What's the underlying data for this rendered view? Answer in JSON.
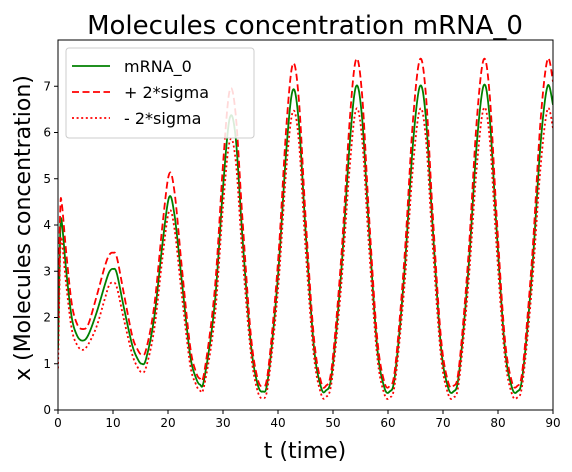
{
  "chart_data": {
    "type": "line",
    "title": "Molecules concentration mRNA_0",
    "xlabel": "t (time)",
    "ylabel": "x (Molecules concentration)",
    "xlim": [
      0,
      90
    ],
    "ylim": [
      0,
      8
    ],
    "xticks": [
      "0",
      "10",
      "20",
      "30",
      "40",
      "50",
      "60",
      "70",
      "80",
      "90"
    ],
    "yticks": [
      "0",
      "1",
      "2",
      "3",
      "4",
      "5",
      "6",
      "7"
    ],
    "grid": false,
    "legend_position": "top-left",
    "series": [
      {
        "name": "mRNA_0",
        "color": "#008000",
        "style": "solid",
        "points": [
          [
            0,
            1.3
          ],
          [
            0.4,
            3.8
          ],
          [
            0.7,
            4.05
          ],
          [
            1.5,
            3.0
          ],
          [
            2.5,
            2.0
          ],
          [
            3.5,
            1.6
          ],
          [
            4.5,
            1.5
          ],
          [
            5.5,
            1.62
          ],
          [
            7,
            2.1
          ],
          [
            8.5,
            2.7
          ],
          [
            9.3,
            2.98
          ],
          [
            10,
            3.05
          ],
          [
            10.7,
            2.95
          ],
          [
            12,
            2.2
          ],
          [
            13.5,
            1.4
          ],
          [
            14.5,
            1.1
          ],
          [
            15.2,
            1.0
          ],
          [
            16,
            1.1
          ],
          [
            17.5,
            2.0
          ],
          [
            19,
            3.6
          ],
          [
            20.2,
            4.6
          ],
          [
            21.2,
            4.2
          ],
          [
            22.5,
            2.8
          ],
          [
            24,
            1.2
          ],
          [
            25,
            0.72
          ],
          [
            25.8,
            0.55
          ],
          [
            26.6,
            0.68
          ],
          [
            28.5,
            2.3
          ],
          [
            30,
            4.8
          ],
          [
            31.2,
            6.3
          ],
          [
            32.3,
            5.9
          ],
          [
            33.5,
            3.8
          ],
          [
            35,
            1.5
          ],
          [
            36.2,
            0.6
          ],
          [
            37.2,
            0.4
          ],
          [
            38.2,
            0.7
          ],
          [
            40,
            2.9
          ],
          [
            41.5,
            5.6
          ],
          [
            42.7,
            6.92
          ],
          [
            43.8,
            6.2
          ],
          [
            45,
            3.9
          ],
          [
            46.5,
            1.4
          ],
          [
            47.8,
            0.5
          ],
          [
            48.7,
            0.42
          ],
          [
            49.8,
            0.8
          ],
          [
            51.5,
            3.0
          ],
          [
            53,
            5.7
          ],
          [
            54.2,
            7.0
          ],
          [
            55.3,
            6.3
          ],
          [
            56.5,
            4.0
          ],
          [
            58,
            1.4
          ],
          [
            59.3,
            0.5
          ],
          [
            60.3,
            0.4
          ],
          [
            61.3,
            0.78
          ],
          [
            63,
            3.0
          ],
          [
            64.5,
            5.7
          ],
          [
            65.8,
            7.0
          ],
          [
            66.9,
            6.3
          ],
          [
            68.1,
            4.0
          ],
          [
            69.6,
            1.4
          ],
          [
            70.9,
            0.5
          ],
          [
            71.9,
            0.4
          ],
          [
            72.9,
            0.78
          ],
          [
            74.6,
            3.0
          ],
          [
            76.1,
            5.7
          ],
          [
            77.4,
            7.02
          ],
          [
            78.5,
            6.3
          ],
          [
            79.7,
            4.0
          ],
          [
            81.2,
            1.4
          ],
          [
            82.5,
            0.5
          ],
          [
            83.5,
            0.4
          ],
          [
            84.5,
            0.78
          ],
          [
            86.2,
            3.0
          ],
          [
            87.7,
            5.7
          ],
          [
            89,
            7.0
          ],
          [
            90,
            6.6
          ]
        ]
      },
      {
        "name": "+ 2*sigma",
        "color": "#ff0000",
        "style": "dashed",
        "points": [
          [
            0,
            2.0
          ],
          [
            0.4,
            4.3
          ],
          [
            0.7,
            4.45
          ],
          [
            1.5,
            3.4
          ],
          [
            2.5,
            2.3
          ],
          [
            3.5,
            1.85
          ],
          [
            4.5,
            1.75
          ],
          [
            5.5,
            1.85
          ],
          [
            7,
            2.45
          ],
          [
            8.5,
            3.1
          ],
          [
            9.3,
            3.35
          ],
          [
            10,
            3.4
          ],
          [
            10.7,
            3.3
          ],
          [
            12,
            2.5
          ],
          [
            13.5,
            1.6
          ],
          [
            14.5,
            1.3
          ],
          [
            15.2,
            1.2
          ],
          [
            16,
            1.3
          ],
          [
            17.5,
            2.25
          ],
          [
            19,
            4.0
          ],
          [
            20.2,
            5.1
          ],
          [
            21.2,
            4.7
          ],
          [
            22.5,
            3.1
          ],
          [
            24,
            1.4
          ],
          [
            25,
            0.85
          ],
          [
            25.8,
            0.68
          ],
          [
            26.6,
            0.82
          ],
          [
            28.5,
            2.6
          ],
          [
            30,
            5.3
          ],
          [
            31.2,
            6.9
          ],
          [
            32.3,
            6.4
          ],
          [
            33.5,
            4.2
          ],
          [
            35,
            1.7
          ],
          [
            36.2,
            0.72
          ],
          [
            37.2,
            0.52
          ],
          [
            38.2,
            0.85
          ],
          [
            40,
            3.2
          ],
          [
            41.5,
            6.1
          ],
          [
            42.7,
            7.48
          ],
          [
            43.8,
            6.7
          ],
          [
            45,
            4.2
          ],
          [
            46.5,
            1.6
          ],
          [
            47.8,
            0.62
          ],
          [
            48.7,
            0.52
          ],
          [
            49.8,
            0.95
          ],
          [
            51.5,
            3.3
          ],
          [
            53,
            6.2
          ],
          [
            54.2,
            7.58
          ],
          [
            55.3,
            6.8
          ],
          [
            56.5,
            4.3
          ],
          [
            58,
            1.6
          ],
          [
            59.3,
            0.62
          ],
          [
            60.3,
            0.52
          ],
          [
            61.3,
            0.92
          ],
          [
            63,
            3.3
          ],
          [
            64.5,
            6.2
          ],
          [
            65.8,
            7.58
          ],
          [
            66.9,
            6.8
          ],
          [
            68.1,
            4.3
          ],
          [
            69.6,
            1.6
          ],
          [
            70.9,
            0.62
          ],
          [
            71.9,
            0.52
          ],
          [
            72.9,
            0.92
          ],
          [
            74.6,
            3.3
          ],
          [
            76.1,
            6.2
          ],
          [
            77.4,
            7.58
          ],
          [
            78.5,
            6.8
          ],
          [
            79.7,
            4.3
          ],
          [
            81.2,
            1.6
          ],
          [
            82.5,
            0.62
          ],
          [
            83.5,
            0.52
          ],
          [
            84.5,
            0.92
          ],
          [
            86.2,
            3.3
          ],
          [
            87.7,
            6.2
          ],
          [
            89,
            7.58
          ],
          [
            90,
            7.1
          ]
        ]
      },
      {
        "name": "- 2*sigma",
        "color": "#ff0000",
        "style": "dotted",
        "points": [
          [
            0,
            0.9
          ],
          [
            0.4,
            3.4
          ],
          [
            0.7,
            3.65
          ],
          [
            1.5,
            2.7
          ],
          [
            2.5,
            1.75
          ],
          [
            3.5,
            1.4
          ],
          [
            4.5,
            1.3
          ],
          [
            5.5,
            1.42
          ],
          [
            7,
            1.8
          ],
          [
            8.5,
            2.4
          ],
          [
            9.3,
            2.7
          ],
          [
            10,
            2.75
          ],
          [
            10.7,
            2.65
          ],
          [
            12,
            1.95
          ],
          [
            13.5,
            1.2
          ],
          [
            14.5,
            0.92
          ],
          [
            15.2,
            0.82
          ],
          [
            16,
            0.92
          ],
          [
            17.5,
            1.75
          ],
          [
            19,
            3.3
          ],
          [
            20.2,
            4.3
          ],
          [
            21.2,
            3.9
          ],
          [
            22.5,
            2.5
          ],
          [
            24,
            1.0
          ],
          [
            25,
            0.58
          ],
          [
            25.8,
            0.42
          ],
          [
            26.6,
            0.54
          ],
          [
            28.5,
            2.0
          ],
          [
            30,
            4.4
          ],
          [
            31.2,
            5.8
          ],
          [
            32.3,
            5.4
          ],
          [
            33.5,
            3.4
          ],
          [
            35,
            1.3
          ],
          [
            36.2,
            0.45
          ],
          [
            37.2,
            0.26
          ],
          [
            38.2,
            0.56
          ],
          [
            40,
            2.6
          ],
          [
            41.5,
            5.2
          ],
          [
            42.7,
            6.45
          ],
          [
            43.8,
            5.8
          ],
          [
            45,
            3.5
          ],
          [
            46.5,
            1.2
          ],
          [
            47.8,
            0.36
          ],
          [
            48.7,
            0.28
          ],
          [
            49.8,
            0.65
          ],
          [
            51.5,
            2.7
          ],
          [
            53,
            5.2
          ],
          [
            54.2,
            6.5
          ],
          [
            55.3,
            5.85
          ],
          [
            56.5,
            3.6
          ],
          [
            58,
            1.2
          ],
          [
            59.3,
            0.36
          ],
          [
            60.3,
            0.27
          ],
          [
            61.3,
            0.62
          ],
          [
            63,
            2.7
          ],
          [
            64.5,
            5.2
          ],
          [
            65.8,
            6.5
          ],
          [
            66.9,
            5.85
          ],
          [
            68.1,
            3.6
          ],
          [
            69.6,
            1.2
          ],
          [
            70.9,
            0.36
          ],
          [
            71.9,
            0.27
          ],
          [
            72.9,
            0.62
          ],
          [
            74.6,
            2.7
          ],
          [
            76.1,
            5.2
          ],
          [
            77.4,
            6.52
          ],
          [
            78.5,
            5.85
          ],
          [
            79.7,
            3.6
          ],
          [
            81.2,
            1.2
          ],
          [
            82.5,
            0.36
          ],
          [
            83.5,
            0.27
          ],
          [
            84.5,
            0.62
          ],
          [
            86.2,
            2.7
          ],
          [
            87.7,
            5.2
          ],
          [
            89,
            6.5
          ],
          [
            90,
            6.1
          ]
        ]
      }
    ]
  }
}
